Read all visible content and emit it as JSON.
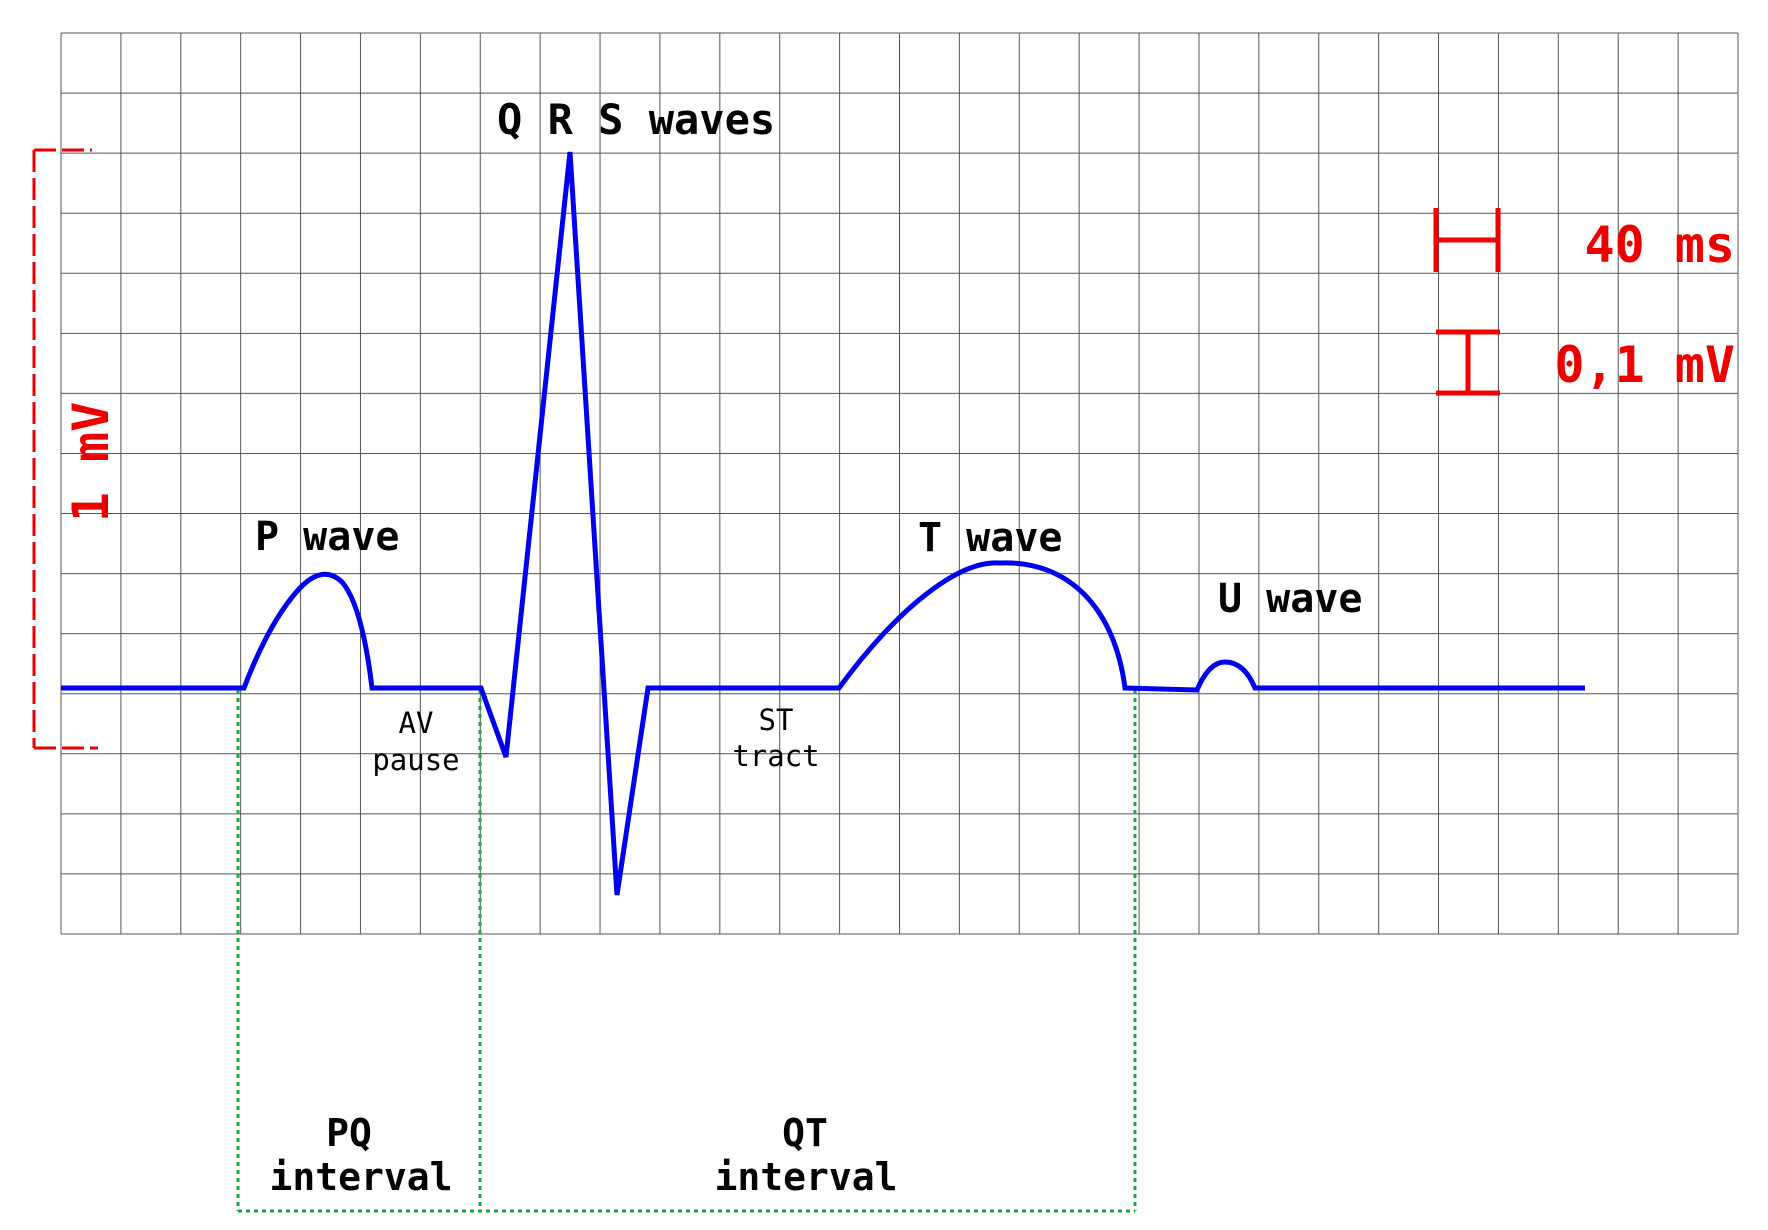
{
  "colors": {
    "background": "#ffffff",
    "grid": "#555555",
    "trace": "#0000ee",
    "scale": "#ee0000",
    "interval": "#1aa83a",
    "label": "#000000"
  },
  "waves": {
    "qrs": "Q R S waves",
    "p": "P wave",
    "t": "T wave",
    "u": "U wave"
  },
  "segments": {
    "av_line1": "AV",
    "av_line2": "pause",
    "st_line1": "ST",
    "st_line2": "tract"
  },
  "intervals": {
    "pq_line1": "PQ",
    "pq_line2": "interval",
    "qt_line1": "QT",
    "qt_line2": "interval"
  },
  "scale": {
    "amplitude": "1 mV",
    "time_unit": "40 ms",
    "voltage_unit": "0,1 mV"
  }
}
